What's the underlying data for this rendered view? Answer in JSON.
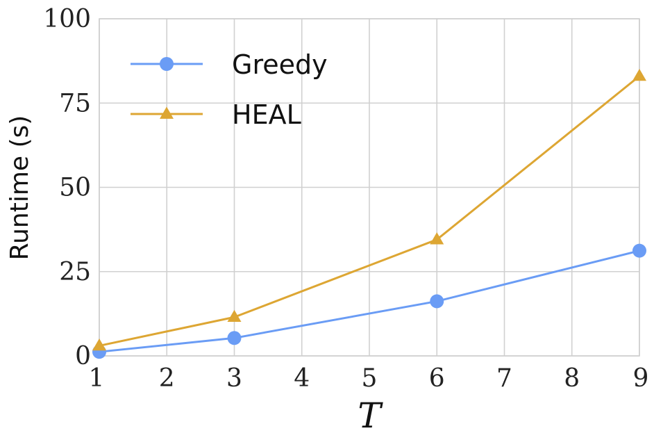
{
  "chart_data": {
    "type": "line",
    "title": "",
    "xlabel": "T",
    "ylabel": "Runtime (s)",
    "xlim": [
      1,
      9
    ],
    "ylim": [
      0,
      100
    ],
    "xticks": [
      "1",
      "2",
      "3",
      "4",
      "5",
      "6",
      "7",
      "8",
      "9"
    ],
    "yticks": [
      "0",
      "25",
      "50",
      "75",
      "100"
    ],
    "grid": true,
    "legend_position": "top-left",
    "series": [
      {
        "name": "Greedy",
        "color": "#6a9cf5",
        "marker": "circle",
        "x": [
          1,
          3,
          6,
          9
        ],
        "y": [
          1.2,
          5.3,
          16.2,
          31.2
        ]
      },
      {
        "name": "HEAL",
        "color": "#dda633",
        "marker": "triangle",
        "x": [
          1,
          3,
          6,
          9
        ],
        "y": [
          3.0,
          11.5,
          34.5,
          83.0
        ]
      }
    ]
  }
}
